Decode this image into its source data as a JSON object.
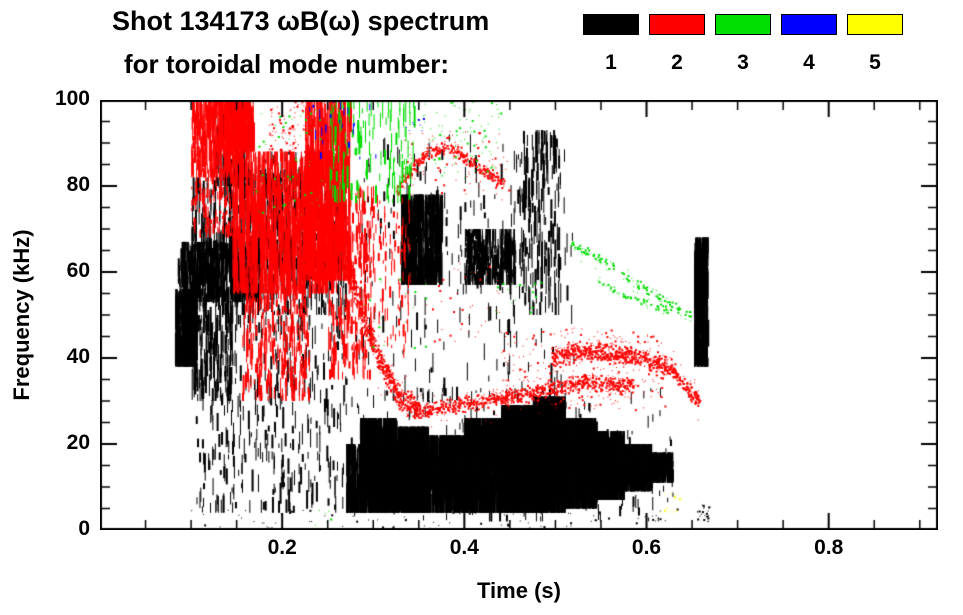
{
  "header": {
    "title_line1": "Shot 134173 ωB(ω) spectrum",
    "title_line2": "for toroidal mode number:"
  },
  "chart_data": {
    "type": "scatter",
    "title": "Shot 134173 ωB(ω) spectrum for toroidal mode number",
    "xlabel": "Time (s)",
    "ylabel": "Frequency (kHz)",
    "xlim": [
      0,
      0.92
    ],
    "ylim": [
      0,
      100
    ],
    "xticks": [
      {
        "v": 0.2,
        "label": "0.2"
      },
      {
        "v": 0.4,
        "label": "0.4"
      },
      {
        "v": 0.6,
        "label": "0.6"
      },
      {
        "v": 0.8,
        "label": "0.8"
      }
    ],
    "yticks": [
      {
        "v": 0,
        "label": "0"
      },
      {
        "v": 20,
        "label": "20"
      },
      {
        "v": 40,
        "label": "40"
      },
      {
        "v": 60,
        "label": "60"
      },
      {
        "v": 80,
        "label": "80"
      },
      {
        "v": 100,
        "label": "100"
      }
    ],
    "x_minor_step": 0.05,
    "y_minor_step": 5,
    "grid": false,
    "legend_position": "top-right",
    "modes": [
      {
        "mode": 1,
        "label": "1",
        "color": "#000000"
      },
      {
        "mode": 2,
        "label": "2",
        "color": "#ff0000"
      },
      {
        "mode": 3,
        "label": "3",
        "color": "#00dd00"
      },
      {
        "mode": 4,
        "label": "4",
        "color": "#0000ff"
      },
      {
        "mode": 5,
        "label": "5",
        "color": "#ffff00"
      }
    ],
    "clusters": [
      {
        "mode": 1,
        "type": "streaks",
        "t": [
          0.082,
          0.105
        ],
        "f": [
          38,
          56
        ],
        "n": 300,
        "len": 0.45
      },
      {
        "mode": 1,
        "type": "streaks",
        "t": [
          0.085,
          0.175
        ],
        "f": [
          53,
          67
        ],
        "n": 520,
        "len": 0.35
      },
      {
        "mode": 1,
        "type": "streaks",
        "t": [
          0.1,
          0.145
        ],
        "f": [
          30,
          82
        ],
        "n": 320,
        "len": 0.12
      },
      {
        "mode": 1,
        "type": "streaks",
        "t": [
          0.125,
          0.165
        ],
        "f": [
          80,
          100
        ],
        "n": 110,
        "len": 0.3
      },
      {
        "mode": 1,
        "type": "streaks",
        "t": [
          0.145,
          0.27
        ],
        "f": [
          50,
          84
        ],
        "n": 520,
        "len": 0.16
      },
      {
        "mode": 1,
        "type": "streaks",
        "t": [
          0.105,
          0.27
        ],
        "f": [
          4,
          50
        ],
        "n": 380,
        "len": 0.09
      },
      {
        "mode": 1,
        "type": "streaks",
        "t": [
          0.17,
          0.26
        ],
        "f": [
          60,
          88
        ],
        "n": 180,
        "len": 0.1
      },
      {
        "mode": 1,
        "type": "streaks",
        "t": [
          0.27,
          0.29
        ],
        "f": [
          4,
          20
        ],
        "n": 160,
        "len": 0.5
      },
      {
        "mode": 1,
        "type": "streaks",
        "t": [
          0.285,
          0.325
        ],
        "f": [
          4,
          26
        ],
        "n": 480,
        "len": 0.6
      },
      {
        "mode": 1,
        "type": "streaks",
        "t": [
          0.325,
          0.36
        ],
        "f": [
          4,
          24
        ],
        "n": 440,
        "len": 0.6
      },
      {
        "mode": 1,
        "type": "streaks",
        "t": [
          0.36,
          0.4
        ],
        "f": [
          4,
          22
        ],
        "n": 400,
        "len": 0.6
      },
      {
        "mode": 1,
        "type": "streaks",
        "t": [
          0.4,
          0.44
        ],
        "f": [
          4,
          26
        ],
        "n": 470,
        "len": 0.6
      },
      {
        "mode": 1,
        "type": "streaks",
        "t": [
          0.44,
          0.475
        ],
        "f": [
          4,
          29
        ],
        "n": 500,
        "len": 0.6
      },
      {
        "mode": 1,
        "type": "streaks",
        "t": [
          0.475,
          0.51
        ],
        "f": [
          4,
          31
        ],
        "n": 520,
        "len": 0.6
      },
      {
        "mode": 1,
        "type": "streaks",
        "t": [
          0.51,
          0.545
        ],
        "f": [
          5,
          26
        ],
        "n": 440,
        "len": 0.6
      },
      {
        "mode": 1,
        "type": "streaks",
        "t": [
          0.545,
          0.575
        ],
        "f": [
          7,
          23
        ],
        "n": 370,
        "len": 0.6
      },
      {
        "mode": 1,
        "type": "streaks",
        "t": [
          0.575,
          0.605
        ],
        "f": [
          9,
          20
        ],
        "n": 320,
        "len": 0.6
      },
      {
        "mode": 1,
        "type": "streaks",
        "t": [
          0.605,
          0.628
        ],
        "f": [
          11,
          18
        ],
        "n": 210,
        "len": 0.6
      },
      {
        "mode": 1,
        "type": "streaks",
        "t": [
          0.27,
          0.63
        ],
        "f": [
          2,
          33
        ],
        "n": 280,
        "len": 0.08
      },
      {
        "mode": 1,
        "type": "streaks",
        "t": [
          0.33,
          0.375
        ],
        "f": [
          57,
          78
        ],
        "n": 420,
        "len": 0.4
      },
      {
        "mode": 1,
        "type": "streaks",
        "t": [
          0.4,
          0.455
        ],
        "f": [
          57,
          70
        ],
        "n": 340,
        "len": 0.35
      },
      {
        "mode": 1,
        "type": "streaks",
        "t": [
          0.28,
          0.52
        ],
        "f": [
          30,
          92
        ],
        "n": 240,
        "len": 0.06
      },
      {
        "mode": 1,
        "type": "streaks",
        "t": [
          0.46,
          0.505
        ],
        "f": [
          50,
          93
        ],
        "n": 150,
        "len": 0.14
      },
      {
        "mode": 1,
        "type": "streaks",
        "t": [
          0.652,
          0.667
        ],
        "f": [
          38,
          68
        ],
        "n": 300,
        "len": 0.3
      },
      {
        "mode": 1,
        "type": "dots",
        "t": [
          0.1,
          0.64
        ],
        "f": [
          0.5,
          5
        ],
        "n": 90
      },
      {
        "mode": 1,
        "type": "dots",
        "t": [
          0.655,
          0.668
        ],
        "f": [
          2,
          6
        ],
        "n": 25
      },
      {
        "mode": 2,
        "type": "streaks",
        "t": [
          0.1,
          0.165
        ],
        "f": [
          82,
          100
        ],
        "n": 380,
        "len": 0.3
      },
      {
        "mode": 2,
        "type": "streaks",
        "t": [
          0.13,
          0.168
        ],
        "f": [
          88,
          100
        ],
        "n": 240,
        "len": 0.5
      },
      {
        "mode": 2,
        "type": "streaks",
        "t": [
          0.1,
          0.15
        ],
        "f": [
          68,
          84
        ],
        "n": 150,
        "len": 0.15
      },
      {
        "mode": 2,
        "type": "streaks",
        "t": [
          0.145,
          0.255
        ],
        "f": [
          55,
          88
        ],
        "n": 720,
        "len": 0.28
      },
      {
        "mode": 2,
        "type": "streaks",
        "t": [
          0.155,
          0.23
        ],
        "f": [
          30,
          57
        ],
        "n": 280,
        "len": 0.15
      },
      {
        "mode": 2,
        "type": "streaks",
        "t": [
          0.225,
          0.275
        ],
        "f": [
          58,
          100
        ],
        "n": 340,
        "len": 0.3
      },
      {
        "mode": 2,
        "type": "dots",
        "t": [
          0.185,
          0.225
        ],
        "f": [
          88,
          100
        ],
        "n": 90
      },
      {
        "mode": 2,
        "type": "band",
        "path": [
          [
            0.253,
            84
          ],
          [
            0.272,
            62
          ],
          [
            0.29,
            48
          ],
          [
            0.31,
            38
          ],
          [
            0.33,
            30.5
          ],
          [
            0.35,
            28.5
          ]
        ],
        "th": 7,
        "n": 650
      },
      {
        "mode": 2,
        "type": "streaks",
        "t": [
          0.25,
          0.3
        ],
        "f": [
          35,
          80
        ],
        "n": 190,
        "len": 0.1
      },
      {
        "mode": 2,
        "type": "streaks",
        "t": [
          0.27,
          0.34
        ],
        "f": [
          40,
          78
        ],
        "n": 150,
        "len": 0.07
      },
      {
        "mode": 2,
        "type": "band",
        "path": [
          [
            0.345,
            27.5
          ],
          [
            0.4,
            29.5
          ],
          [
            0.44,
            31
          ],
          [
            0.48,
            32
          ],
          [
            0.505,
            33.5
          ],
          [
            0.53,
            34.5
          ],
          [
            0.585,
            33.5
          ]
        ],
        "th": 4.5,
        "n": 850
      },
      {
        "mode": 2,
        "type": "band",
        "path": [
          [
            0.495,
            40
          ],
          [
            0.53,
            42
          ],
          [
            0.565,
            41
          ],
          [
            0.6,
            40
          ],
          [
            0.625,
            38
          ],
          [
            0.645,
            33
          ],
          [
            0.658,
            30
          ]
        ],
        "th": 5,
        "n": 750
      },
      {
        "mode": 2,
        "type": "band",
        "path": [
          [
            0.325,
            79
          ],
          [
            0.345,
            85
          ],
          [
            0.365,
            88.5
          ],
          [
            0.385,
            89
          ],
          [
            0.405,
            86
          ],
          [
            0.425,
            83
          ],
          [
            0.443,
            80.5
          ]
        ],
        "th": 3.5,
        "n": 320
      },
      {
        "mode": 2,
        "type": "dots",
        "t": [
          0.33,
          0.45
        ],
        "f": [
          78,
          93
        ],
        "n": 80
      },
      {
        "mode": 2,
        "type": "dots",
        "t": [
          0.44,
          0.62
        ],
        "f": [
          28,
          47
        ],
        "n": 260
      },
      {
        "mode": 2,
        "type": "dots",
        "t": [
          0.35,
          0.44
        ],
        "f": [
          44,
          62
        ],
        "n": 40
      },
      {
        "mode": 3,
        "type": "dots",
        "t": [
          0.17,
          0.245
        ],
        "f": [
          72,
          98
        ],
        "n": 60
      },
      {
        "mode": 3,
        "type": "streaks",
        "t": [
          0.25,
          0.345
        ],
        "f": [
          76,
          100
        ],
        "n": 130,
        "len": 0.18
      },
      {
        "mode": 3,
        "type": "dots",
        "t": [
          0.35,
          0.44
        ],
        "f": [
          82,
          100
        ],
        "n": 90
      },
      {
        "mode": 3,
        "type": "band",
        "path": [
          [
            0.515,
            67
          ],
          [
            0.55,
            63
          ],
          [
            0.585,
            58
          ],
          [
            0.62,
            53
          ],
          [
            0.65,
            50
          ]
        ],
        "th": 2.5,
        "n": 130
      },
      {
        "mode": 3,
        "type": "band",
        "path": [
          [
            0.545,
            58
          ],
          [
            0.585,
            54
          ],
          [
            0.625,
            50.5
          ]
        ],
        "th": 2,
        "n": 60
      },
      {
        "mode": 3,
        "type": "dots",
        "t": [
          0.43,
          0.49
        ],
        "f": [
          50,
          58
        ],
        "n": 18
      },
      {
        "mode": 3,
        "type": "dots",
        "t": [
          0.29,
          0.36
        ],
        "f": [
          42,
          60
        ],
        "n": 20
      },
      {
        "mode": 3,
        "type": "dots",
        "t": [
          0.235,
          0.255
        ],
        "f": [
          1,
          5
        ],
        "n": 6
      },
      {
        "mode": 4,
        "type": "streaks",
        "t": [
          0.225,
          0.305
        ],
        "f": [
          86,
          100
        ],
        "n": 22,
        "len": 0.15
      },
      {
        "mode": 4,
        "type": "dots",
        "t": [
          0.335,
          0.36
        ],
        "f": [
          88,
          96
        ],
        "n": 8
      },
      {
        "mode": 5,
        "type": "dots",
        "t": [
          0.615,
          0.638
        ],
        "f": [
          4,
          9
        ],
        "n": 12
      }
    ]
  }
}
